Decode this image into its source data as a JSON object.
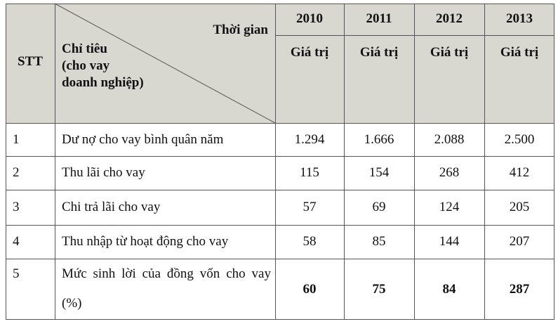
{
  "header": {
    "stt": "STT",
    "time": "Thời gian",
    "criteria": "Chỉ tiêu\n(cho vay\ndoanh nghiệp)",
    "years": [
      "2010",
      "2011",
      "2012",
      "2013"
    ],
    "value_labels": [
      "Giá trị",
      "Giá trị",
      "Giá trị",
      "Giá trị"
    ]
  },
  "rows": [
    {
      "stt": "1",
      "label": "Dư nợ cho vay bình quân năm",
      "values": [
        "1.294",
        "1.666",
        "2.088",
        "2.500"
      ]
    },
    {
      "stt": "2",
      "label": "Thu lãi cho vay",
      "values": [
        "115",
        "154",
        "268",
        "412"
      ]
    },
    {
      "stt": "3",
      "label": "Chi trả lãi cho vay",
      "values": [
        "57",
        "69",
        "124",
        "205"
      ]
    },
    {
      "stt": "4",
      "label": "Thu nhập từ hoạt động cho vay",
      "values": [
        "58",
        "85",
        "144",
        "207"
      ]
    },
    {
      "stt": "5",
      "label": "Mức sinh lời của đồng vốn cho vay (%)",
      "values": [
        "60",
        "75",
        "84",
        "287"
      ]
    }
  ]
}
